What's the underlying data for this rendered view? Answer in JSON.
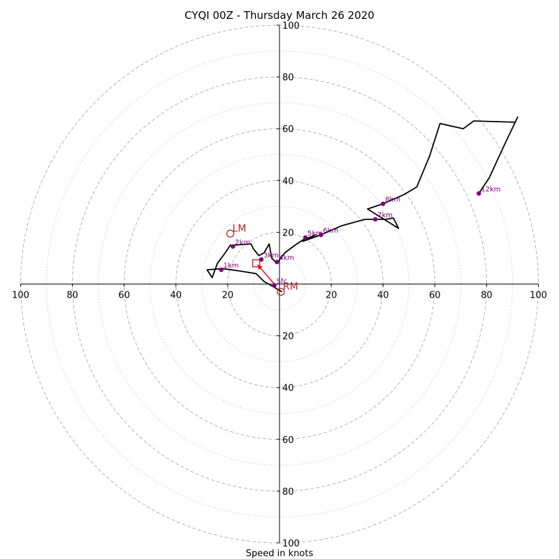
{
  "chart_data": {
    "type": "hodograph",
    "title": "CYQI 00Z - Thursday March 26 2020",
    "xlabel": "Speed in knots",
    "ring_values": [
      20,
      40,
      60,
      80,
      100
    ],
    "minor_ring_values": [
      10,
      30,
      50,
      70,
      90
    ],
    "tick_labels": {
      "left": [
        "100",
        "80",
        "60",
        "40",
        "20"
      ],
      "right": [
        "20",
        "40",
        "60",
        "80",
        "100"
      ],
      "up": [
        "20",
        "40",
        "60",
        "80",
        "100"
      ],
      "down": [
        "20",
        "40",
        "60",
        "80",
        "100"
      ]
    },
    "grid": true,
    "colors": {
      "trace": "#000000",
      "points": "#800080",
      "storm": "#b22222",
      "shear": "#ff0000",
      "grid": "#b0b0b0"
    },
    "trace": [
      [
        1,
        -3
      ],
      [
        -6,
        1
      ],
      [
        -9,
        4
      ],
      [
        -15,
        5
      ],
      [
        -22,
        6
      ],
      [
        -28,
        5.5
      ],
      [
        -26,
        2.5
      ],
      [
        -24,
        8
      ],
      [
        -21,
        12
      ],
      [
        -19,
        15
      ],
      [
        -18,
        15
      ],
      [
        -11,
        15.5
      ],
      [
        -10,
        13.5
      ],
      [
        -8,
        11
      ],
      [
        -6,
        12
      ],
      [
        -4,
        15.5
      ],
      [
        -3,
        10
      ],
      [
        -2,
        9
      ],
      [
        -1,
        8
      ],
      [
        2,
        12
      ],
      [
        6,
        15
      ],
      [
        9,
        17
      ],
      [
        14,
        19
      ],
      [
        9,
        16.5
      ],
      [
        16,
        19
      ],
      [
        24,
        22.5
      ],
      [
        33,
        25
      ],
      [
        37,
        25
      ],
      [
        41,
        25
      ],
      [
        44,
        25.5
      ],
      [
        46,
        21.5
      ],
      [
        42,
        24
      ],
      [
        34,
        29
      ],
      [
        40,
        31
      ],
      [
        48,
        34.5
      ],
      [
        53,
        37.5
      ],
      [
        58,
        49.5
      ],
      [
        62,
        62
      ],
      [
        71,
        60
      ],
      [
        75,
        63
      ],
      [
        91,
        62.5
      ],
      [
        92,
        64.5
      ],
      [
        87,
        54
      ],
      [
        81,
        41
      ],
      [
        77,
        35
      ]
    ],
    "points": [
      {
        "label": "Sfc",
        "u": -2,
        "v": -0.5
      },
      {
        "label": "1km",
        "u": -22.5,
        "v": 5.5
      },
      {
        "label": "2km",
        "u": -18,
        "v": 14.5
      },
      {
        "label": "3km",
        "u": -7,
        "v": 9.5
      },
      {
        "label": "4km",
        "u": -1,
        "v": 8.5
      },
      {
        "label": "5km",
        "u": 10,
        "v": 18
      },
      {
        "label": "6km",
        "u": 16,
        "v": 19
      },
      {
        "label": "7km",
        "u": 37,
        "v": 25
      },
      {
        "label": "8km",
        "u": 40,
        "v": 31
      },
      {
        "label": "12km",
        "u": 77,
        "v": 35
      }
    ],
    "storm_motion": {
      "LM": {
        "label": "LM",
        "u": -19,
        "v": 19.5
      },
      "RM": {
        "label": "RM",
        "u": 0.5,
        "v": -3
      },
      "mean_wind": {
        "u": -9,
        "v": 8
      }
    },
    "shear_vector": {
      "from": [
        -2,
        0
      ],
      "to": [
        -8.5,
        7.5
      ]
    }
  }
}
